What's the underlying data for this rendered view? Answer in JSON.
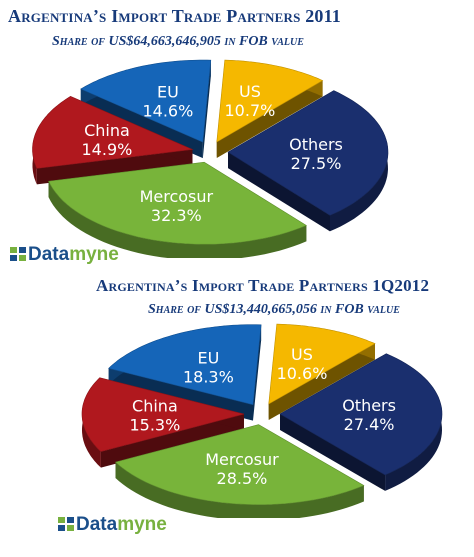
{
  "chart1": {
    "title": "Argentina’s Import Trade Partners 2011",
    "subtitle": "Share of  US$64,663,646,905 in FOB value"
  },
  "chart2": {
    "title": "Argentina’s Import Trade Partners 1Q2012",
    "subtitle": "Share of  US$13,440,665,056 in FOB value"
  },
  "logo": {
    "brand_part1": "Data",
    "brand_part2": "myne"
  },
  "colors": {
    "US": "#f5b800",
    "Others": "#1a2f6e",
    "Mercosur": "#78b43a",
    "China": "#b0181e",
    "EU": "#1565b8"
  },
  "chart_data": [
    {
      "type": "pie",
      "title": "Argentina’s Import Trade Partners 2011",
      "subtitle": "Share of  US$64,663,646,905 in FOB value",
      "categories": [
        "US",
        "Others",
        "Mercosur",
        "China",
        "EU"
      ],
      "values": [
        10.7,
        27.5,
        32.3,
        14.9,
        14.6
      ],
      "labels": [
        "10.7%",
        "27.5%",
        "32.3%",
        "14.9%",
        "14.6%"
      ]
    },
    {
      "type": "pie",
      "title": "Argentina’s Import Trade Partners 1Q2012",
      "subtitle": "Share of  US$13,440,665,056 in FOB value",
      "categories": [
        "US",
        "Others",
        "Mercosur",
        "China",
        "EU"
      ],
      "values": [
        10.6,
        27.4,
        28.5,
        15.3,
        18.3
      ],
      "labels": [
        "10.6%",
        "27.4%",
        "28.5%",
        "15.3%",
        "18.3%"
      ]
    }
  ]
}
